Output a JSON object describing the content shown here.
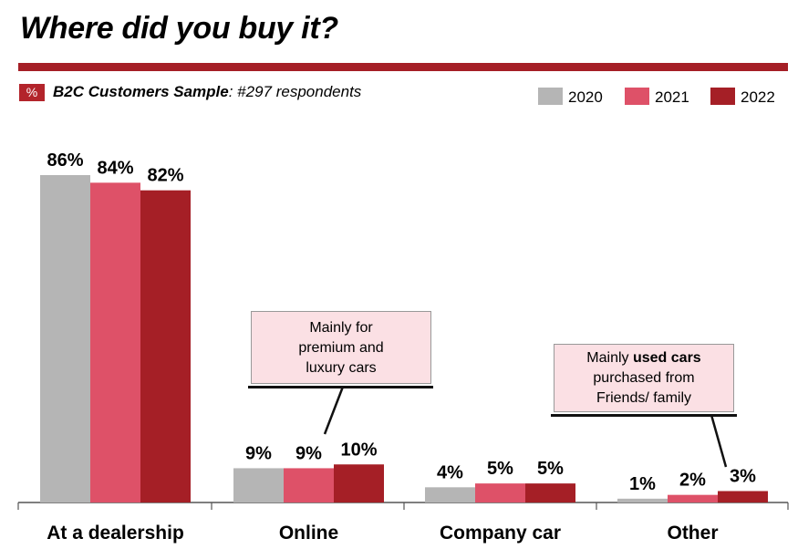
{
  "title": "Where did you buy it?",
  "badge": "%",
  "sample": {
    "label": "B2C Customers Sample",
    "rest": ": #297 respondents"
  },
  "colors": {
    "accent": "#a51f26",
    "s2020": "#b5b5b5",
    "s2021": "#de5168",
    "s2022": "#a51f26",
    "note_bg": "#fbe0e4"
  },
  "notes": {
    "online": [
      "Mainly for",
      "premium and",
      "luxury cars"
    ],
    "other": {
      "line1_pre": "Mainly ",
      "line1_bold": "used cars",
      "line2": "purchased from",
      "line3": "Friends/ family"
    }
  },
  "chart_data": {
    "type": "bar",
    "categories": [
      "At a dealership",
      "Online",
      "Company car",
      "Other"
    ],
    "series": [
      {
        "name": "2020",
        "values": [
          86,
          9,
          4,
          1
        ],
        "labels": [
          "86%",
          "9%",
          "4%",
          "1%"
        ]
      },
      {
        "name": "2021",
        "values": [
          84,
          9,
          5,
          2
        ],
        "labels": [
          "84%",
          "9%",
          "5%",
          "2%"
        ]
      },
      {
        "name": "2022",
        "values": [
          82,
          10,
          5,
          3
        ],
        "labels": [
          "82%",
          "10%",
          "5%",
          "3%"
        ]
      }
    ],
    "ylim": [
      0,
      86
    ],
    "legend": "top-right",
    "grid": false
  }
}
